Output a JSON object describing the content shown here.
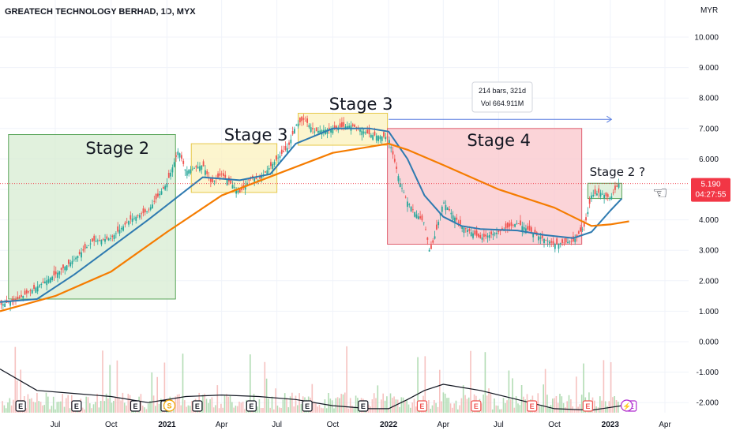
{
  "header": {
    "title": "GREATECH TECHNOLOGY BERHAD, 1D, MYX"
  },
  "currency_label": "MYR",
  "last_price": {
    "value": "5.190",
    "countdown": "04:27:55",
    "color": "#f23645"
  },
  "colors": {
    "ma_short": "#2e7ab0",
    "ma_long": "#f57c00",
    "volume_ma": "#131722",
    "up": "#26a69a",
    "down": "#ef5350",
    "stage2_fill": "#d7ecd1",
    "stage3_fill": "#fbf1bd",
    "stage4_fill": "#f9c5cb"
  },
  "chart_data": {
    "type": "line",
    "price_axis": {
      "ticks": [
        "10.000",
        "9.000",
        "8.000",
        "7.000",
        "6.000",
        "5.000",
        "4.000",
        "3.000",
        "2.000",
        "1.000",
        "0.000",
        "-1.000",
        "-2.000"
      ],
      "ylim": [
        -2.4,
        11.0
      ]
    },
    "time_axis": {
      "labels": [
        "Jul",
        "Oct",
        "2021",
        "Apr",
        "Jul",
        "Oct",
        "2022",
        "Apr",
        "Jul",
        "Oct",
        "2023",
        "Apr"
      ],
      "xlim": [
        "2020-04-01",
        "2023-05-10"
      ]
    },
    "series": [
      {
        "role": "price",
        "x": [
          "2020-04-01",
          "2020-05-01",
          "2020-06-01",
          "2020-07-01",
          "2020-08-01",
          "2020-09-01",
          "2020-10-01",
          "2020-11-01",
          "2020-12-01",
          "2021-01-01",
          "2021-01-20",
          "2021-02-01",
          "2021-03-01",
          "2021-03-15",
          "2021-04-01",
          "2021-05-01",
          "2021-05-20",
          "2021-06-01",
          "2021-07-01",
          "2021-07-20",
          "2021-08-01",
          "2021-08-15",
          "2021-09-01",
          "2021-10-01",
          "2021-11-01",
          "2021-12-01",
          "2022-01-01",
          "2022-01-20",
          "2022-02-01",
          "2022-02-15",
          "2022-03-01",
          "2022-03-10",
          "2022-03-20",
          "2022-04-01",
          "2022-04-15",
          "2022-05-01",
          "2022-06-01",
          "2022-07-01",
          "2022-08-01",
          "2022-09-01",
          "2022-10-01",
          "2022-11-01",
          "2022-11-20",
          "2022-12-01",
          "2022-12-15",
          "2023-01-01",
          "2023-01-15"
        ],
        "values": [
          1.2,
          1.4,
          1.8,
          2.2,
          2.7,
          3.3,
          3.4,
          4.0,
          4.3,
          5.2,
          6.3,
          5.6,
          5.8,
          5.2,
          5.5,
          4.9,
          5.4,
          5.3,
          6.0,
          6.4,
          7.1,
          7.3,
          6.9,
          7.0,
          7.1,
          6.8,
          6.7,
          5.2,
          4.6,
          4.2,
          3.9,
          2.9,
          3.6,
          4.6,
          4.2,
          3.8,
          3.4,
          3.6,
          3.9,
          3.5,
          3.2,
          3.3,
          3.8,
          4.8,
          4.9,
          4.7,
          5.19
        ]
      },
      {
        "role": "ma_short",
        "x": [
          "2020-04-01",
          "2020-06-01",
          "2020-08-01",
          "2020-10-01",
          "2020-12-01",
          "2021-01-15",
          "2021-03-01",
          "2021-05-01",
          "2021-06-20",
          "2021-08-01",
          "2021-10-01",
          "2021-12-01",
          "2022-01-01",
          "2022-02-01",
          "2022-03-01",
          "2022-04-01",
          "2022-05-01",
          "2022-06-01",
          "2022-08-01",
          "2022-09-15",
          "2022-11-01",
          "2022-12-01",
          "2023-01-01",
          "2023-01-20"
        ],
        "values": [
          1.3,
          1.4,
          2.2,
          3.1,
          4.0,
          4.7,
          5.4,
          5.3,
          5.5,
          6.5,
          7.0,
          7.0,
          6.9,
          6.0,
          4.8,
          4.1,
          3.8,
          3.7,
          3.65,
          3.5,
          3.4,
          3.6,
          4.3,
          4.7
        ]
      },
      {
        "role": "ma_long",
        "x": [
          "2020-04-01",
          "2020-07-01",
          "2020-10-01",
          "2021-01-01",
          "2021-04-01",
          "2021-07-01",
          "2021-10-01",
          "2022-01-01",
          "2022-02-01",
          "2022-04-01",
          "2022-07-01",
          "2022-10-01",
          "2022-12-01",
          "2023-01-01",
          "2023-02-01"
        ],
        "values": [
          1.0,
          1.5,
          2.3,
          3.6,
          4.8,
          5.5,
          6.2,
          6.5,
          6.3,
          5.8,
          5.0,
          4.4,
          3.8,
          3.85,
          3.95
        ]
      },
      {
        "role": "volume_ma",
        "x": [
          "2020-04-01",
          "2020-06-01",
          "2020-08-01",
          "2020-10-01",
          "2020-12-01",
          "2021-02-01",
          "2021-04-01",
          "2021-06-01",
          "2021-08-01",
          "2021-10-01",
          "2021-12-01",
          "2022-01-01",
          "2022-02-01",
          "2022-03-01",
          "2022-04-01",
          "2022-05-01",
          "2022-06-01",
          "2022-08-01",
          "2022-10-01",
          "2022-12-01",
          "2023-01-20"
        ],
        "values": [
          -0.9,
          -1.6,
          -1.7,
          -1.8,
          -2.0,
          -1.8,
          -1.75,
          -1.8,
          -1.9,
          -2.1,
          -2.2,
          -2.2,
          -1.9,
          -1.6,
          -1.4,
          -1.5,
          -1.6,
          -1.9,
          -2.2,
          -2.25,
          -2.1
        ]
      }
    ]
  },
  "annotations": {
    "stage_boxes": [
      {
        "label": "Stage 2",
        "x0": "2020-04-15",
        "x1": "2021-01-15",
        "y0": 1.4,
        "y1": 6.8,
        "kind": "stage2"
      },
      {
        "label": "Stage 3",
        "x0": "2021-02-10",
        "x1": "2021-07-01",
        "y0": 4.9,
        "y1": 6.5,
        "kind": "stage3"
      },
      {
        "label": "Stage 3",
        "x0": "2021-08-05",
        "x1": "2021-12-30",
        "y0": 6.45,
        "y1": 7.5,
        "kind": "stage3"
      },
      {
        "label": "Stage 4",
        "x0": "2021-12-30",
        "x1": "2022-11-15",
        "y0": 3.2,
        "y1": 7.0,
        "kind": "stage4"
      },
      {
        "label": "",
        "x0": "2022-11-25",
        "x1": "2023-01-20",
        "y0": 4.7,
        "y1": 5.2,
        "kind": "stage2"
      }
    ],
    "stage2_question": "Stage 2 ?",
    "measure": {
      "bars_text": "214 bars, 321d",
      "vol_text": "Vol 664.911M"
    },
    "event_markers": [
      {
        "x": "2020-05-05",
        "label": "E",
        "kind": "earnings"
      },
      {
        "x": "2020-08-05",
        "label": "E",
        "kind": "earnings"
      },
      {
        "x": "2020-11-10",
        "label": "E",
        "kind": "earnings"
      },
      {
        "x": "2020-12-30",
        "label": "E",
        "kind": "earnings"
      },
      {
        "x": "2021-01-05",
        "label": "S",
        "kind": "split"
      },
      {
        "x": "2021-02-20",
        "label": "E",
        "kind": "earnings"
      },
      {
        "x": "2021-05-20",
        "label": "E",
        "kind": "earnings"
      },
      {
        "x": "2021-08-20",
        "label": "E",
        "kind": "earnings"
      },
      {
        "x": "2021-11-20",
        "label": "E",
        "kind": "earnings"
      },
      {
        "x": "2022-02-25",
        "label": "E",
        "kind": "earnings_neg"
      },
      {
        "x": "2022-05-25",
        "label": "E",
        "kind": "earnings_neg"
      },
      {
        "x": "2022-08-25",
        "label": "E",
        "kind": "earnings_neg"
      },
      {
        "x": "2022-11-25",
        "label": "E",
        "kind": "earnings_neg"
      },
      {
        "x": "2023-02-05",
        "label": "E",
        "kind": "earnings_future"
      }
    ]
  }
}
